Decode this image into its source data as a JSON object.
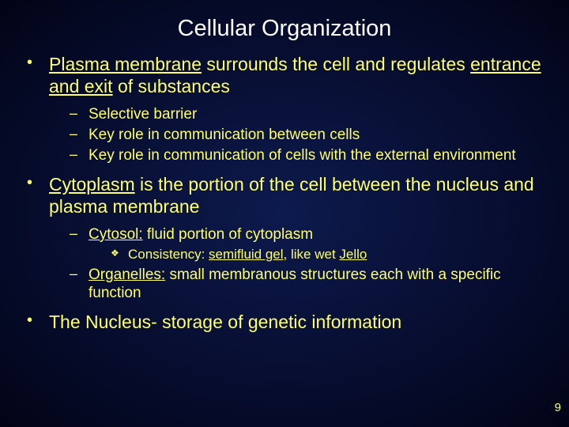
{
  "title": "Cellular Organization",
  "bullets": {
    "b1": {
      "t1": "Plasma membrane",
      "t2": " surrounds the cell and regulates ",
      "t3": "entrance and exit",
      "t4": " of substances",
      "sub": {
        "s1": "Selective barrier",
        "s2": "Key role in communication between cells",
        "s3": "Key role in communication of cells with the external environment"
      }
    },
    "b2": {
      "t1": "Cytoplasm",
      "t2": " is the portion of the cell between the nucleus and plasma membrane",
      "sub": {
        "s1a": "Cytosol:",
        "s1b": " fluid portion of cytoplasm",
        "s1_sub": {
          "x1a": "Consistency: ",
          "x1b": "semifluid gel",
          "x1c": ", like wet ",
          "x1d": "Jello"
        },
        "s2a": "Organelles:",
        "s2b": " small membranous structures each with a specific function"
      }
    },
    "b3": {
      "t1": "The Nucleus- storage of genetic information"
    }
  },
  "pageNumber": "9",
  "colors": {
    "text": "#ffff66",
    "title": "#ffffff"
  }
}
